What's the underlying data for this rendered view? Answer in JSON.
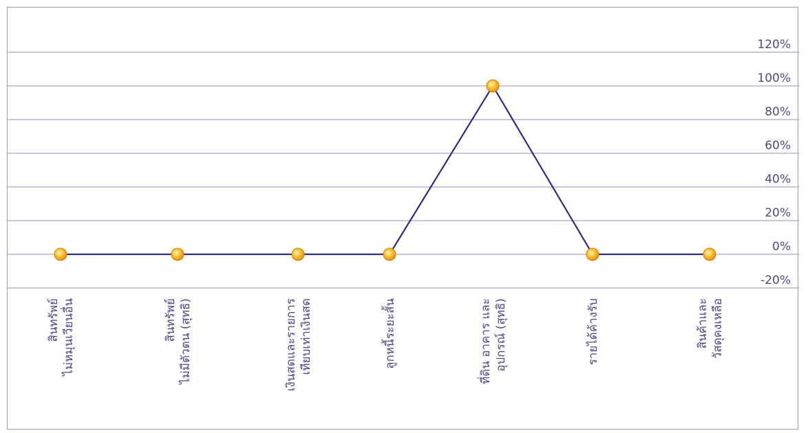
{
  "chart_data": {
    "type": "line",
    "categories": [
      "สินทรัพย์ไม่หมุนเวียนอื่น",
      "สินทรัพย์ไม่มีตัวตน (สุทธิ)",
      "เงินสดและรายการเทียบเท่าเงินสด",
      "ลูกหนี้ระยะสั้น",
      "ที่ดิน อาคาร และอุปกรณ์ (สุทธิ)",
      "รายได้ค้างรับ",
      "สินค้าและวัสดุคงเหลือ"
    ],
    "category_label_lines": [
      [
        "สินทรัพย์",
        "ไม่หมุนเวียนอื่น"
      ],
      [
        "สินทรัพย์",
        "ไม่มีตัวตน (สุทธิ)"
      ],
      [
        "เงินสดและรายการ",
        "เทียบเท่าเงินสด"
      ],
      [
        "ลูกหนี้ระยะสั้น"
      ],
      [
        "ที่ดิน อาคาร และ",
        "อุปกรณ์ (สุทธิ)"
      ],
      [
        "รายได้ค้างรับ"
      ],
      [
        "สินค้าและ",
        "วัสดุคงเหลือ"
      ]
    ],
    "values": [
      0,
      0,
      0,
      0,
      100,
      0,
      0
    ],
    "yticks": [
      -20,
      0,
      20,
      40,
      60,
      80,
      100,
      120
    ],
    "ytick_labels": [
      "-20%",
      "0%",
      "20%",
      "40%",
      "60%",
      "80%",
      "100%",
      "120%"
    ],
    "ylim": [
      -20,
      120
    ],
    "title": "",
    "xlabel": "",
    "ylabel": "",
    "y_axis_side": "right",
    "grid": true,
    "legend": "none",
    "line_color": "#2e2c7c",
    "marker_color": "#f2a51e",
    "grid_color": "#8f8fc0"
  }
}
